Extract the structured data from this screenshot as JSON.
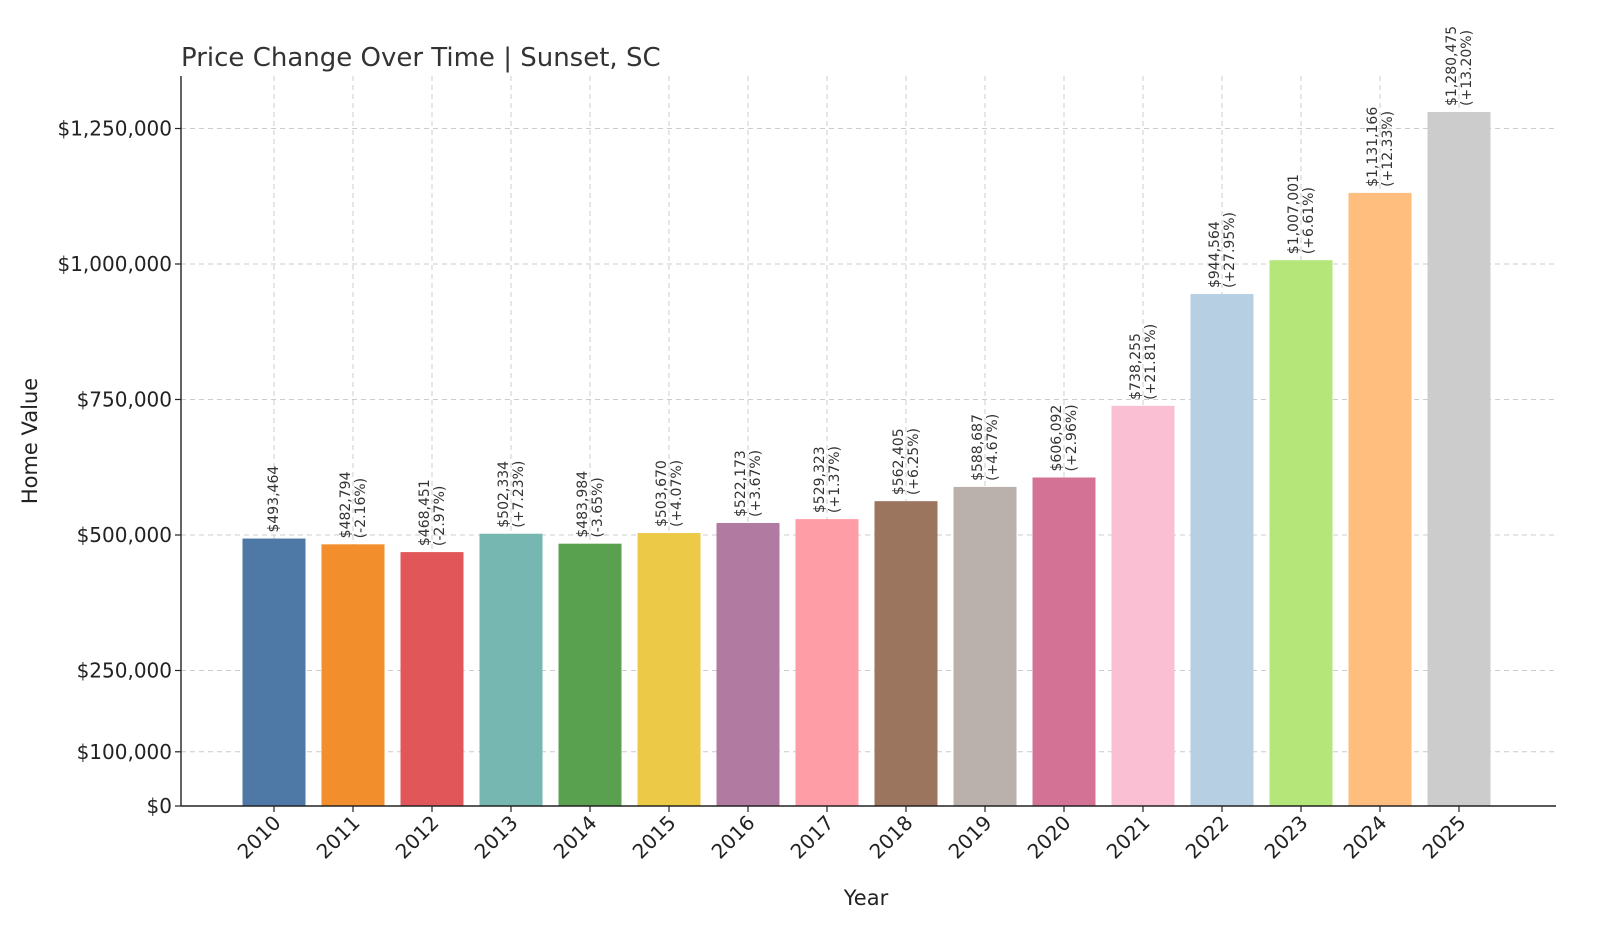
{
  "chart_data": {
    "type": "bar",
    "title": "Price Change Over Time | Sunset, SC",
    "xlabel": "Year",
    "ylabel": "Home Value",
    "categories": [
      "2010",
      "2011",
      "2012",
      "2013",
      "2014",
      "2015",
      "2016",
      "2017",
      "2018",
      "2019",
      "2020",
      "2021",
      "2022",
      "2023",
      "2024",
      "2025"
    ],
    "values": [
      493464,
      482794,
      468451,
      502334,
      483984,
      503670,
      522173,
      529323,
      562405,
      588687,
      606092,
      738255,
      944564,
      1007001,
      1131166,
      1280475
    ],
    "value_labels": [
      "$493,464",
      "$482,794",
      "$468,451",
      "$502,334",
      "$483,984",
      "$503,670",
      "$522,173",
      "$529,323",
      "$562,405",
      "$588,687",
      "$606,092",
      "$738,255",
      "$944,564",
      "$1,007,001",
      "$1,131,166",
      "$1,280,475"
    ],
    "change_labels": [
      "",
      "(-2.16%)",
      "(-2.97%)",
      "(+7.23%)",
      "(-3.65%)",
      "(+4.07%)",
      "(+3.67%)",
      "(+1.37%)",
      "(+6.25%)",
      "(+4.67%)",
      "(+2.96%)",
      "(+21.81%)",
      "(+27.95%)",
      "(+6.61%)",
      "(+12.33%)",
      "(+13.20%)"
    ],
    "colors": [
      "#4e79a7",
      "#f28e2b",
      "#e15759",
      "#76b7b2",
      "#59a14f",
      "#edc948",
      "#b07aa1",
      "#ff9da7",
      "#9c755f",
      "#bab0ac",
      "#d37295",
      "#fabfd2",
      "#b6cfe3",
      "#b5e67a",
      "#ffbe7d",
      "#cccccc"
    ],
    "yticks": [
      0,
      100000,
      250000,
      500000,
      750000,
      1000000,
      1250000
    ],
    "ytick_labels": [
      "$0",
      "$100,000",
      "$250,000",
      "$500,000",
      "$750,000",
      "$1,000,000",
      "$1,250,000"
    ],
    "ylim": [
      0,
      1350000
    ],
    "grid": true,
    "legend": "none"
  }
}
